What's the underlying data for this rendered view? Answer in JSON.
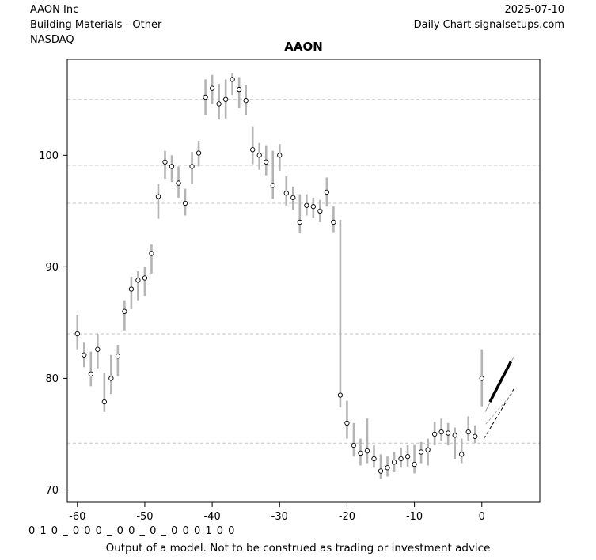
{
  "header": {
    "company": "AAON Inc",
    "industry": "Building Materials - Other",
    "exchange": "NASDAQ",
    "date": "2025-07-10",
    "chart_type": "Daily Chart signalsetups.com"
  },
  "chart_data": {
    "type": "hlc-bar",
    "title": "AAON",
    "xlabel": "",
    "ylabel": "",
    "x_ticks": [
      -60,
      -50,
      -40,
      -30,
      -20,
      -10,
      0
    ],
    "y_ticks": [
      70,
      80,
      90,
      100
    ],
    "xlim": [
      -61.5,
      8.6
    ],
    "ylim": [
      68.9,
      108.6
    ],
    "grid": "dashed-horizontal",
    "gridlines": [
      105.0,
      99.1,
      95.7,
      84.0,
      74.2
    ],
    "bar_color": "#b4b4b4",
    "gridline_color": "#c6c6c6",
    "bars_columns": [
      "day",
      "low",
      "high",
      "close"
    ],
    "bars": [
      [
        -60,
        82.6,
        85.7,
        84.0
      ],
      [
        -59,
        81.0,
        83.2,
        82.1
      ],
      [
        -58,
        79.3,
        82.4,
        80.4
      ],
      [
        -57,
        80.9,
        84.0,
        82.6
      ],
      [
        -56,
        77.0,
        80.5,
        77.9
      ],
      [
        -55,
        78.6,
        82.1,
        80.0
      ],
      [
        -54,
        80.2,
        83.0,
        82.0
      ],
      [
        -53,
        84.3,
        87.0,
        86.0
      ],
      [
        -52,
        86.2,
        89.1,
        88.0
      ],
      [
        -51,
        87.0,
        89.6,
        88.8
      ],
      [
        -50,
        87.4,
        90.0,
        89.0
      ],
      [
        -49,
        89.4,
        92.0,
        91.2
      ],
      [
        -48,
        94.3,
        97.4,
        96.3
      ],
      [
        -47,
        97.9,
        100.4,
        99.4
      ],
      [
        -46,
        97.6,
        100.0,
        99.0
      ],
      [
        -45,
        96.2,
        99.0,
        97.5
      ],
      [
        -44,
        94.6,
        97.0,
        95.7
      ],
      [
        -43,
        97.4,
        100.3,
        99.0
      ],
      [
        -42,
        99.0,
        101.3,
        100.2
      ],
      [
        -41,
        103.6,
        106.8,
        105.2
      ],
      [
        -40,
        104.6,
        107.2,
        106.0
      ],
      [
        -39,
        103.2,
        106.4,
        104.6
      ],
      [
        -38,
        103.3,
        106.8,
        105.0
      ],
      [
        -37,
        105.4,
        107.4,
        106.8
      ],
      [
        -36,
        104.2,
        107.0,
        105.9
      ],
      [
        -35,
        103.6,
        106.3,
        104.9
      ],
      [
        -34,
        99.2,
        102.6,
        100.5
      ],
      [
        -33,
        98.7,
        101.1,
        100.0
      ],
      [
        -32,
        98.2,
        100.9,
        99.4
      ],
      [
        -31,
        96.1,
        100.4,
        97.3
      ],
      [
        -30,
        98.6,
        101.0,
        100.0
      ],
      [
        -29,
        95.5,
        98.1,
        96.6
      ],
      [
        -28,
        95.1,
        97.2,
        96.2
      ],
      [
        -27,
        93.0,
        96.5,
        94.0
      ],
      [
        -26,
        94.6,
        96.5,
        95.5
      ],
      [
        -25,
        94.4,
        96.2,
        95.4
      ],
      [
        -24,
        94.0,
        96.0,
        95.0
      ],
      [
        -23,
        95.4,
        98.0,
        96.7
      ],
      [
        -22,
        93.1,
        95.4,
        94.0
      ],
      [
        -21,
        77.4,
        94.2,
        78.5
      ],
      [
        -20,
        74.6,
        78.0,
        76.0
      ],
      [
        -19,
        73.0,
        76.0,
        74.0
      ],
      [
        -18,
        72.2,
        74.6,
        73.3
      ],
      [
        -17,
        72.4,
        76.4,
        73.5
      ],
      [
        -16,
        72.0,
        74.0,
        72.8
      ],
      [
        -15,
        71.0,
        73.2,
        71.7
      ],
      [
        -14,
        71.2,
        73.0,
        72.0
      ],
      [
        -13,
        71.6,
        73.4,
        72.5
      ],
      [
        -12,
        72.0,
        73.8,
        72.8
      ],
      [
        -11,
        72.1,
        74.0,
        73.0
      ],
      [
        -10,
        71.5,
        74.1,
        72.3
      ],
      [
        -9,
        72.4,
        74.3,
        73.4
      ],
      [
        -8,
        72.2,
        74.6,
        73.6
      ],
      [
        -7,
        74.0,
        76.1,
        75.0
      ],
      [
        -6,
        74.4,
        76.4,
        75.2
      ],
      [
        -5,
        74.0,
        76.0,
        75.1
      ],
      [
        -4,
        72.8,
        75.6,
        74.9
      ],
      [
        -3,
        72.4,
        74.6,
        73.2
      ],
      [
        -2,
        74.4,
        76.6,
        75.2
      ],
      [
        -1,
        74.2,
        75.8,
        74.8
      ],
      [
        0,
        77.5,
        82.6,
        80.0
      ]
    ],
    "projection_lines": [
      {
        "x1": 0.5,
        "y1": 77.0,
        "x2": 4.8,
        "y2": 82.0,
        "style": "thin"
      },
      {
        "x1": 1.2,
        "y1": 77.9,
        "x2": 4.3,
        "y2": 81.5,
        "style": "thick"
      },
      {
        "x1": 0.3,
        "y1": 74.6,
        "x2": 4.9,
        "y2": 79.2,
        "style": "dashed"
      },
      {
        "x1": 0.6,
        "y1": 75.9,
        "x2": 4.7,
        "y2": 78.8,
        "style": "dashed_thin"
      }
    ]
  },
  "footer": {
    "signal_code": "0 1 0 _ 0 0 0 _ 0 0 _ 0 _ 0 0 0 1 0 0",
    "disclaimer": "Output of a model. Not to be construed as trading or investment advice"
  }
}
